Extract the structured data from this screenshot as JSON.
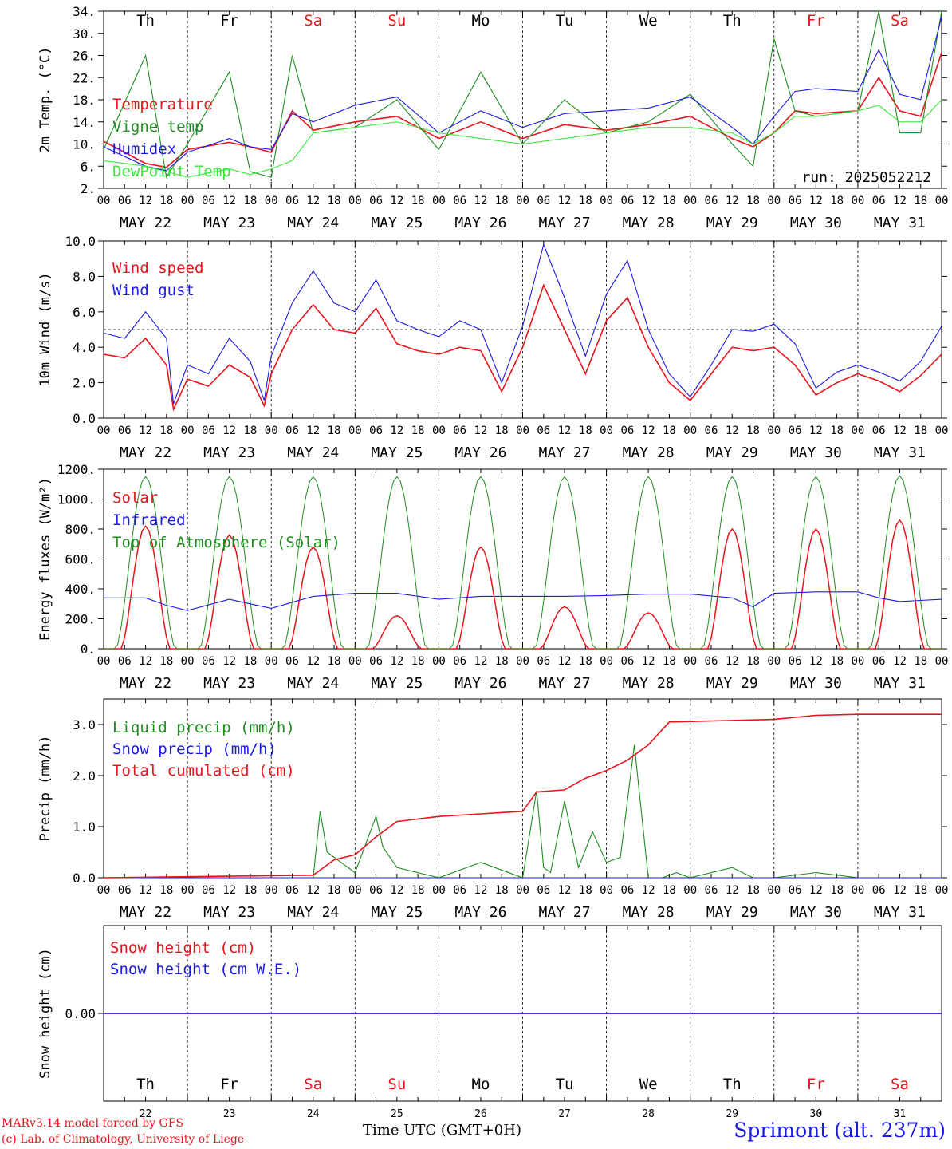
{
  "footer": {
    "model_line": "MARv3.14 model forced by GFS",
    "lab_line": "(c) Lab. of Climatology, University of Liege",
    "time_axis_label": "Time UTC (GMT+0H)",
    "station": "Sprimont (alt. 237m)",
    "run": "run: 2025052212"
  },
  "colors": {
    "red": "#e8141c",
    "green": "#1e8c1e",
    "blue": "#1a1ae6",
    "lime": "#3ce63c",
    "weekend": "#e8141c",
    "weekday": "#000000"
  },
  "days": {
    "names": [
      "Th",
      "Fr",
      "Sa",
      "Su",
      "Mo",
      "Tu",
      "We",
      "Th",
      "Fr",
      "Sa"
    ],
    "weekend": [
      false,
      false,
      true,
      true,
      false,
      false,
      false,
      false,
      true,
      true
    ],
    "dates": [
      "MAY 22",
      "MAY 23",
      "MAY 24",
      "MAY 25",
      "MAY 26",
      "MAY 27",
      "MAY 28",
      "MAY 29",
      "MAY 30",
      "MAY 31"
    ],
    "day_numbers": [
      "22",
      "23",
      "24",
      "25",
      "26",
      "27",
      "28",
      "29",
      "30",
      "31"
    ],
    "hour_ticks": [
      "00",
      "06",
      "12",
      "18"
    ],
    "final_tick": "00"
  },
  "chart_data": [
    {
      "type": "line",
      "ylabel": "2m Temp. (°C)",
      "ylim": [
        2,
        34
      ],
      "yticks": [
        "2.",
        "6.",
        "10.",
        "14.",
        "18.",
        "22.",
        "26.",
        "30.",
        "34."
      ],
      "x_unit": "hours since May 22 00 UTC",
      "series": [
        {
          "name": "Temperature",
          "color": "red",
          "x": [
            0,
            12,
            18,
            24,
            36,
            42,
            48,
            54,
            60,
            72,
            84,
            96,
            108,
            120,
            132,
            144,
            156,
            168,
            180,
            186,
            192,
            198,
            204,
            216,
            222,
            228,
            234,
            240
          ],
          "values": [
            10.5,
            6.5,
            5.8,
            9,
            10.3,
            9.5,
            8.5,
            16,
            12.5,
            14,
            15,
            11,
            14,
            11,
            13.5,
            12.5,
            13.5,
            15,
            11,
            9.5,
            12,
            16,
            15.5,
            16,
            22,
            16,
            15,
            26.5
          ]
        },
        {
          "name": "Vigne temp",
          "color": "green",
          "x": [
            0,
            12,
            18,
            24,
            36,
            42,
            48,
            54,
            60,
            72,
            84,
            96,
            108,
            120,
            132,
            144,
            156,
            168,
            180,
            186,
            192,
            198,
            204,
            216,
            222,
            228,
            234,
            240
          ],
          "values": [
            9,
            26,
            4,
            10,
            23,
            5,
            4,
            26,
            12,
            13,
            18,
            9,
            23,
            10,
            18,
            12,
            14,
            19,
            10,
            6,
            29,
            16,
            15,
            16,
            34,
            12,
            12,
            34
          ]
        },
        {
          "name": "Humidex",
          "color": "blue",
          "x": [
            0,
            12,
            18,
            24,
            36,
            42,
            48,
            54,
            60,
            72,
            84,
            96,
            108,
            120,
            132,
            144,
            156,
            168,
            180,
            186,
            192,
            198,
            204,
            216,
            222,
            228,
            234,
            240
          ],
          "values": [
            9.5,
            6,
            5.2,
            8.5,
            11,
            9.5,
            9,
            15.5,
            14,
            17,
            18.5,
            12,
            16,
            13,
            15.5,
            16,
            16.5,
            18.5,
            13,
            10,
            15,
            19.5,
            20,
            19.5,
            27,
            19,
            18,
            33
          ]
        },
        {
          "name": "DewPoint Temp",
          "color": "lime",
          "x": [
            0,
            12,
            18,
            24,
            36,
            42,
            48,
            54,
            60,
            72,
            84,
            96,
            108,
            120,
            132,
            144,
            156,
            168,
            180,
            186,
            192,
            198,
            204,
            216,
            222,
            228,
            234,
            240
          ],
          "values": [
            7,
            6,
            5,
            4,
            5.5,
            4.5,
            5.5,
            7,
            12,
            13,
            14,
            12,
            11,
            10,
            11,
            12,
            13,
            13,
            12,
            10,
            12,
            15,
            15,
            16,
            17,
            14,
            14,
            18
          ]
        }
      ]
    },
    {
      "type": "line",
      "ylabel": "10m Wind (m/s)",
      "ylim": [
        0,
        10
      ],
      "yticks": [
        "0.0",
        "2.0",
        "4.0",
        "6.0",
        "8.0",
        "10.0"
      ],
      "reference_line": 5,
      "series": [
        {
          "name": "Wind speed",
          "color": "red",
          "x": [
            0,
            6,
            12,
            18,
            20,
            24,
            30,
            36,
            42,
            46,
            48,
            54,
            60,
            66,
            72,
            78,
            84,
            90,
            96,
            102,
            108,
            114,
            120,
            126,
            132,
            138,
            144,
            150,
            156,
            162,
            168,
            174,
            180,
            186,
            192,
            198,
            204,
            210,
            216,
            222,
            228,
            234,
            240
          ],
          "values": [
            3.6,
            3.4,
            4.5,
            3,
            0.5,
            2.2,
            1.8,
            3,
            2.3,
            0.7,
            2.5,
            5,
            6.4,
            5,
            4.8,
            6.2,
            4.2,
            3.8,
            3.6,
            4,
            3.8,
            1.5,
            4,
            7.5,
            5,
            2.5,
            5.5,
            6.8,
            4,
            2,
            1,
            2.5,
            4,
            3.8,
            4,
            3,
            1.3,
            2,
            2.5,
            2.1,
            1.5,
            2.4,
            3.6
          ]
        },
        {
          "name": "Wind gust",
          "color": "blue",
          "x": [
            0,
            6,
            12,
            18,
            20,
            24,
            30,
            36,
            42,
            46,
            48,
            54,
            60,
            66,
            72,
            78,
            84,
            90,
            96,
            102,
            108,
            114,
            120,
            126,
            132,
            138,
            144,
            150,
            156,
            162,
            168,
            174,
            180,
            186,
            192,
            198,
            204,
            210,
            216,
            222,
            228,
            234,
            240
          ],
          "values": [
            4.8,
            4.5,
            6,
            4.5,
            0.8,
            3,
            2.5,
            4.5,
            3.2,
            1,
            3.5,
            6.5,
            8.3,
            6.5,
            6,
            7.8,
            5.5,
            5,
            4.6,
            5.5,
            5,
            2,
            5.2,
            9.8,
            6.8,
            3.5,
            7,
            8.9,
            5,
            2.5,
            1.2,
            3,
            5,
            4.9,
            5.3,
            4.2,
            1.7,
            2.6,
            3,
            2.6,
            2.1,
            3.2,
            5.2
          ]
        }
      ]
    },
    {
      "type": "line",
      "ylabel": "Energy fluxes (W/m²)",
      "ylim": [
        0,
        1200
      ],
      "yticks": [
        "0.",
        "200.",
        "400.",
        "600.",
        "800.",
        "1000.",
        "1200."
      ],
      "series": [
        {
          "name": "Solar",
          "color": "red",
          "daily_peak": [
            820,
            760,
            680,
            220,
            680,
            280,
            240,
            800,
            800,
            860
          ]
        },
        {
          "name": "Infrared",
          "color": "blue",
          "x": [
            0,
            12,
            18,
            24,
            36,
            42,
            48,
            60,
            72,
            84,
            96,
            108,
            120,
            132,
            144,
            156,
            168,
            180,
            186,
            192,
            204,
            216,
            222,
            228,
            240
          ],
          "values": [
            340,
            340,
            290,
            255,
            330,
            300,
            270,
            350,
            370,
            370,
            330,
            350,
            350,
            350,
            355,
            365,
            365,
            340,
            280,
            370,
            380,
            380,
            340,
            315,
            330
          ]
        },
        {
          "name": "Top of Atmosphere (Solar)",
          "color": "green",
          "daily_peak": [
            1150,
            1150,
            1150,
            1150,
            1150,
            1150,
            1150,
            1150,
            1150,
            1155
          ]
        }
      ]
    },
    {
      "type": "line",
      "ylabel": "Precip (mm/h)",
      "ylim": [
        0,
        3.5
      ],
      "yticks": [
        "0.0",
        "1.0",
        "2.0",
        "3.0"
      ],
      "series": [
        {
          "name": "Liquid precip (mm/h)",
          "color": "green",
          "x": [
            0,
            60,
            62,
            64,
            68,
            72,
            78,
            80,
            84,
            90,
            96,
            108,
            120,
            124,
            126,
            128,
            132,
            136,
            140,
            144,
            148,
            152,
            156,
            160,
            164,
            168,
            180,
            186,
            192,
            204,
            216,
            240
          ],
          "values": [
            0,
            0,
            1.3,
            0.5,
            0.3,
            0.1,
            1.2,
            0.6,
            0.2,
            0.1,
            0,
            0.3,
            0,
            1.7,
            0.2,
            0.1,
            1.5,
            0.2,
            0.9,
            0.3,
            0.4,
            2.6,
            0,
            0,
            0.1,
            0,
            0.2,
            0,
            0,
            0.1,
            0,
            0
          ]
        },
        {
          "name": "Snow precip (mm/h)",
          "color": "blue",
          "x": [
            0,
            240
          ],
          "values": [
            0,
            0
          ]
        },
        {
          "name": "Total cumulated (cm)",
          "color": "red",
          "x": [
            0,
            24,
            48,
            60,
            66,
            72,
            78,
            84,
            96,
            108,
            120,
            124,
            132,
            138,
            144,
            150,
            156,
            162,
            168,
            180,
            192,
            204,
            216,
            240
          ],
          "values": [
            0,
            0.02,
            0.04,
            0.05,
            0.35,
            0.45,
            0.8,
            1.1,
            1.2,
            1.25,
            1.3,
            1.68,
            1.72,
            1.95,
            2.1,
            2.3,
            2.6,
            3.05,
            3.06,
            3.08,
            3.1,
            3.18,
            3.2,
            3.2
          ]
        }
      ]
    },
    {
      "type": "line",
      "ylabel": "Snow height (cm)",
      "yticks": [
        "0.00"
      ],
      "series": [
        {
          "name": "Snow height (cm)",
          "color": "red",
          "x": [
            0,
            240
          ],
          "values": [
            0,
            0
          ]
        },
        {
          "name": "Snow height (cm W.E.)",
          "color": "blue",
          "x": [
            0,
            240
          ],
          "values": [
            0,
            0
          ]
        }
      ]
    }
  ]
}
